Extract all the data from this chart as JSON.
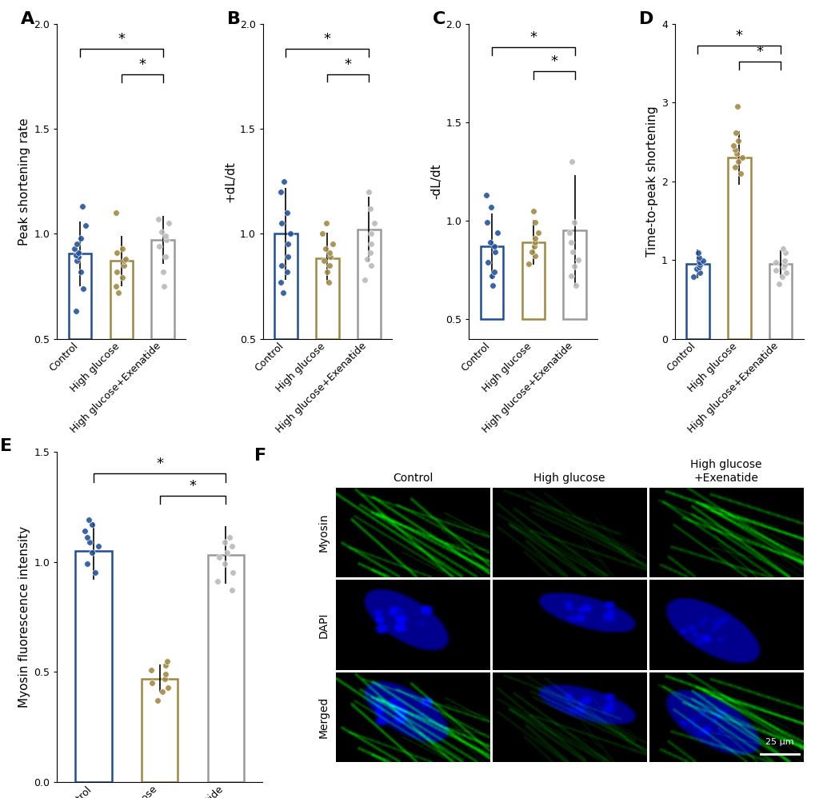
{
  "panels": [
    "A",
    "B",
    "C",
    "D",
    "E"
  ],
  "categories": [
    "Control",
    "High glucose",
    "High glucose+Exenatide"
  ],
  "colors": [
    "#1f4e96",
    "#a08840",
    "#b8b8b8"
  ],
  "bar_edge_colors": [
    "#1f4e96",
    "#a08840",
    "#999999"
  ],
  "bar_means": {
    "A": [
      0.905,
      0.87,
      0.97
    ],
    "B": [
      1.0,
      0.885,
      1.02
    ],
    "C": [
      0.87,
      0.89,
      0.95
    ],
    "D": [
      0.95,
      2.3,
      0.95
    ],
    "E": [
      1.05,
      0.47,
      1.03
    ]
  },
  "bar_errors": {
    "A": [
      0.155,
      0.12,
      0.115
    ],
    "B": [
      0.22,
      0.12,
      0.155
    ],
    "C": [
      0.165,
      0.115,
      0.28
    ],
    "D": [
      0.18,
      0.34,
      0.17
    ],
    "E": [
      0.13,
      0.065,
      0.13
    ]
  },
  "ylabels": {
    "A": "Peak shortening rate",
    "B": "+dL/dt",
    "C": "-dL/dt",
    "D": "Time-to-peak shortening",
    "E": "Myosin fluorescence intensity"
  },
  "ylims": {
    "A": [
      0.5,
      2.0
    ],
    "B": [
      0.6,
      2.0
    ],
    "C": [
      0.4,
      2.0
    ],
    "D": [
      0.0,
      4.0
    ],
    "E": [
      0.0,
      1.5
    ]
  },
  "yticks": {
    "A": [
      0.5,
      1.0,
      1.5,
      2.0
    ],
    "B": [
      0.5,
      1.0,
      1.5,
      2.0
    ],
    "C": [
      0.5,
      1.0,
      1.5,
      2.0
    ],
    "D": [
      0.0,
      1.0,
      2.0,
      3.0,
      4.0
    ],
    "E": [
      0.0,
      0.5,
      1.0,
      1.5
    ]
  },
  "dot_data": {
    "A": {
      "Control": [
        0.63,
        0.74,
        0.82,
        0.87,
        0.89,
        0.9,
        0.91,
        0.93,
        0.95,
        0.98,
        1.04,
        1.13
      ],
      "High glucose": [
        0.72,
        0.75,
        0.79,
        0.82,
        0.85,
        0.87,
        0.88,
        0.91,
        0.93,
        1.1
      ],
      "High glucose+Exenatide": [
        0.75,
        0.82,
        0.89,
        0.94,
        0.97,
        0.99,
        1.01,
        1.05,
        1.07
      ]
    },
    "B": {
      "Control": [
        0.72,
        0.77,
        0.82,
        0.85,
        0.89,
        0.95,
        1.0,
        1.05,
        1.1,
        1.2,
        1.25
      ],
      "High glucose": [
        0.77,
        0.82,
        0.85,
        0.87,
        0.89,
        0.91,
        0.93,
        0.95,
        1.0,
        1.05
      ],
      "High glucose+Exenatide": [
        0.78,
        0.85,
        0.88,
        0.91,
        0.95,
        1.0,
        1.05,
        1.12,
        1.2
      ]
    },
    "C": {
      "Control": [
        0.67,
        0.72,
        0.74,
        0.79,
        0.84,
        0.87,
        0.89,
        0.94,
        0.99,
        1.07,
        1.13
      ],
      "High glucose": [
        0.78,
        0.82,
        0.84,
        0.87,
        0.89,
        0.91,
        0.94,
        0.99,
        1.05
      ],
      "High glucose+Exenatide": [
        0.67,
        0.72,
        0.77,
        0.8,
        0.84,
        0.89,
        0.94,
        0.99,
        1.3
      ]
    },
    "D": {
      "Control": [
        0.79,
        0.84,
        0.89,
        0.91,
        0.94,
        0.97,
        0.99,
        1.03,
        1.09
      ],
      "High glucose": [
        2.1,
        2.18,
        2.25,
        2.3,
        2.35,
        2.4,
        2.45,
        2.52,
        2.62,
        2.95
      ],
      "High glucose+Exenatide": [
        0.7,
        0.79,
        0.84,
        0.87,
        0.91,
        0.94,
        0.97,
        0.99,
        1.09,
        1.14
      ]
    },
    "E": {
      "Control": [
        0.95,
        0.99,
        1.04,
        1.07,
        1.09,
        1.11,
        1.14,
        1.17,
        1.19
      ],
      "High glucose": [
        0.37,
        0.41,
        0.43,
        0.45,
        0.47,
        0.49,
        0.51,
        0.53,
        0.55
      ],
      "High glucose+Exenatide": [
        0.87,
        0.91,
        0.95,
        0.99,
        1.02,
        1.04,
        1.07,
        1.09,
        1.11
      ]
    }
  },
  "sig_brackets": {
    "A": [
      [
        0,
        2,
        1.88,
        "*"
      ],
      [
        1,
        2,
        1.76,
        "*"
      ]
    ],
    "B": [
      [
        0,
        2,
        1.88,
        "*"
      ],
      [
        1,
        2,
        1.76,
        "*"
      ]
    ],
    "C": [
      [
        0,
        2,
        1.88,
        "*"
      ],
      [
        1,
        2,
        1.76,
        "*"
      ]
    ],
    "D": [
      [
        0,
        2,
        3.72,
        "*"
      ],
      [
        1,
        2,
        3.52,
        "*"
      ]
    ],
    "E": [
      [
        0,
        2,
        1.4,
        "*"
      ],
      [
        1,
        2,
        1.3,
        "*"
      ]
    ]
  },
  "col_labels_F": [
    "Control",
    "High glucose",
    "High glucose\n+Exenatide"
  ],
  "row_labels_F": [
    "Myosin",
    "DAPI",
    "Merged"
  ],
  "scale_bar_text": "25 μm",
  "background_color": "#ffffff",
  "label_fontsize": 11,
  "tick_fontsize": 9,
  "panel_label_fontsize": 16,
  "bar_linewidth": 1.8,
  "bar_width": 0.55
}
